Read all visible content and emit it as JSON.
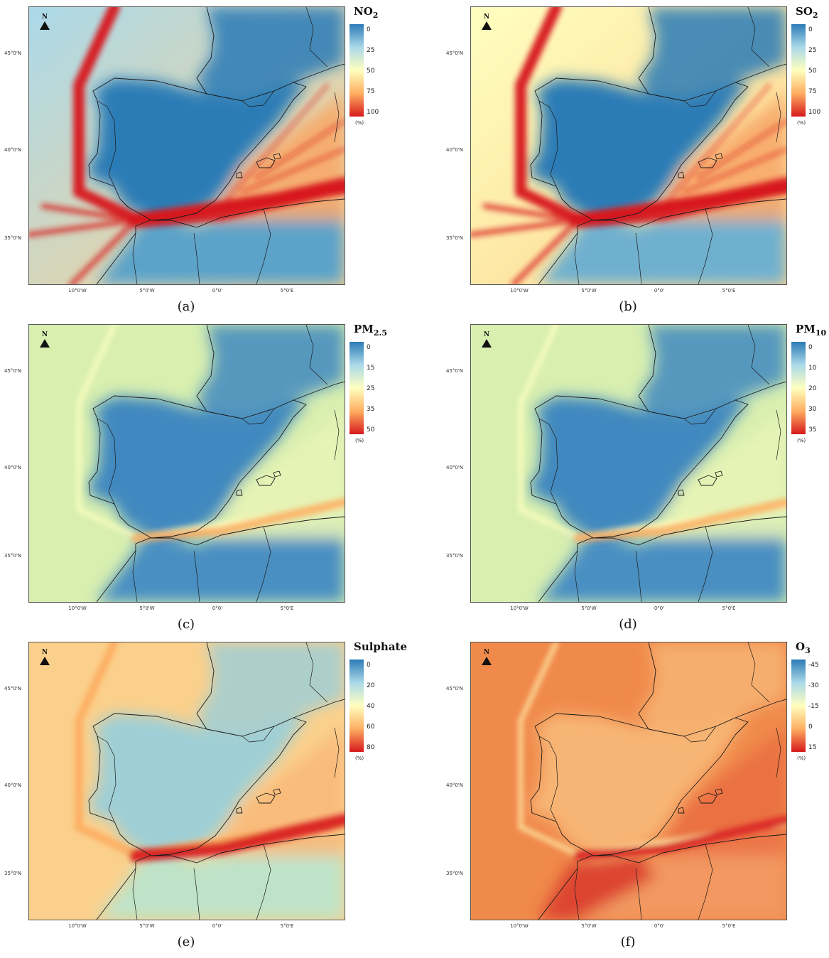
{
  "axes": {
    "lat_labels": [
      "45°0'N",
      "40°0'N",
      "35°0'N"
    ],
    "lon_labels": [
      "10°0'W",
      "5°0'W",
      "0°0'",
      "5°0'E"
    ]
  },
  "north_label": "N",
  "unit_label": "(%)",
  "panels": [
    {
      "caption": "(a)",
      "pollutant": "NO",
      "subscript": "2",
      "ticks": [
        "0",
        "25",
        "50",
        "75",
        "100"
      ],
      "scheme": "high"
    },
    {
      "caption": "(b)",
      "pollutant": "SO",
      "subscript": "2",
      "ticks": [
        "0",
        "25",
        "50",
        "75",
        "100"
      ],
      "scheme": "high"
    },
    {
      "caption": "(c)",
      "pollutant": "PM",
      "subscript": "2.5",
      "ticks": [
        "0",
        "15",
        "25",
        "35",
        "50"
      ],
      "scheme": "mid"
    },
    {
      "caption": "(d)",
      "pollutant": "PM",
      "subscript": "10",
      "ticks": [
        "0",
        "10",
        "20",
        "30",
        "35"
      ],
      "scheme": "mid"
    },
    {
      "caption": "(e)",
      "pollutant": "Sulphate",
      "subscript": "",
      "ticks": [
        "0",
        "20",
        "40",
        "60",
        "80"
      ],
      "scheme": "sulphate"
    },
    {
      "caption": "(f)",
      "pollutant": "O",
      "subscript": "3",
      "ticks": [
        "-45",
        "-30",
        "-15",
        "0",
        "15"
      ],
      "scheme": "ozone"
    }
  ],
  "colors": {
    "ramp": [
      "#2c7bb6",
      "#abd9e9",
      "#ffffbf",
      "#fdae61",
      "#d7191c"
    ],
    "coastline": "#1a1a1a"
  }
}
